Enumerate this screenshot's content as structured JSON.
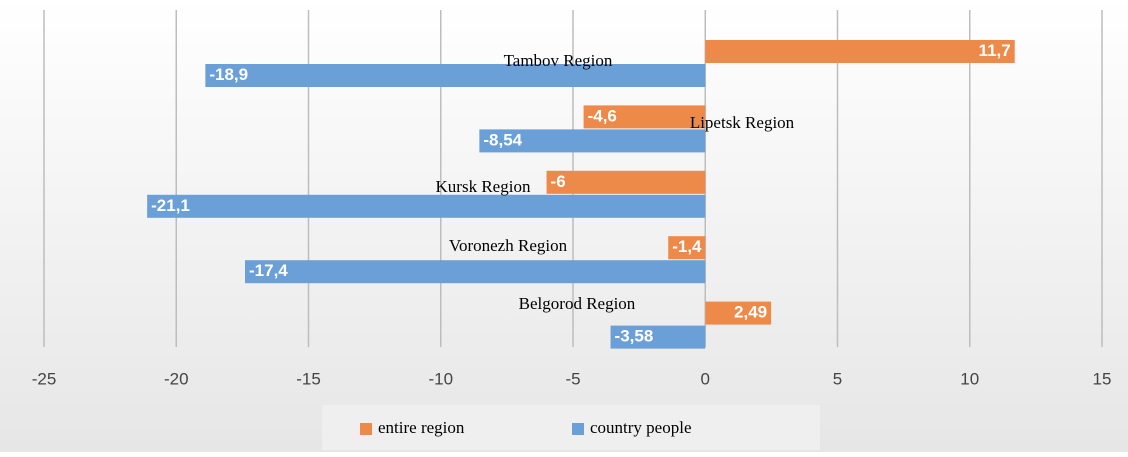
{
  "chart_data": {
    "type": "hbar",
    "categories": [
      "Tambov Region",
      "Lipetsk Region",
      "Kursk Region",
      "Voronezh Region",
      "Belgorod Region"
    ],
    "series": [
      {
        "name": "entire region",
        "color": "#ed8a4a",
        "values": [
          11.7,
          -4.6,
          -6,
          -1.4,
          2.49
        ],
        "value_labels": [
          "11,7",
          "-4,6",
          "-6",
          "-1,4",
          "2,49"
        ]
      },
      {
        "name": "country people",
        "color": "#6a9fd8",
        "values": [
          -18.9,
          -8.54,
          -21.1,
          -17.4,
          -3.58
        ],
        "value_labels": [
          "-18,9",
          "-8,54",
          "-21,1",
          "-17,4",
          "-3,58"
        ]
      }
    ],
    "xlim": [
      -25,
      15
    ],
    "xticks": [
      -25,
      -20,
      -15,
      -10,
      -5,
      0,
      5,
      10,
      15
    ],
    "grid": true,
    "legend": "bottom"
  }
}
